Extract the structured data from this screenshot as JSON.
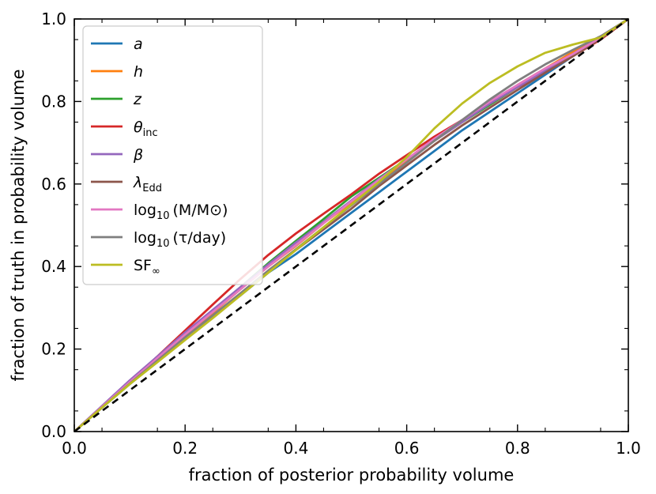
{
  "chart_data": {
    "type": "line",
    "xlabel": "fraction of posterior probability volume",
    "ylabel": "fraction of truth in probability volume",
    "xlim": [
      0.0,
      1.0
    ],
    "ylim": [
      0.0,
      1.0
    ],
    "x_ticks": [
      "0.0",
      "0.2",
      "0.4",
      "0.6",
      "0.8",
      "1.0"
    ],
    "y_ticks": [
      "0.0",
      "0.2",
      "0.4",
      "0.6",
      "0.8",
      "1.0"
    ],
    "grid": false,
    "legend_position": "upper-left",
    "reference_line": {
      "style": "dashed",
      "color": "#000000",
      "x": [
        0,
        1
      ],
      "y": [
        0,
        1
      ]
    },
    "x": [
      0.0,
      0.05,
      0.1,
      0.15,
      0.2,
      0.25,
      0.3,
      0.35,
      0.4,
      0.45,
      0.5,
      0.55,
      0.6,
      0.65,
      0.7,
      0.75,
      0.8,
      0.85,
      0.9,
      0.95,
      1.0
    ],
    "series": [
      {
        "name": "a",
        "base": "a",
        "sub": "",
        "italic": true,
        "color": "#1f77b4",
        "values": [
          0.0,
          0.058,
          0.115,
          0.17,
          0.225,
          0.28,
          0.33,
          0.385,
          0.43,
          0.48,
          0.53,
          0.58,
          0.63,
          0.68,
          0.73,
          0.775,
          0.82,
          0.865,
          0.91,
          0.955,
          1.0
        ]
      },
      {
        "name": "h",
        "base": "h",
        "sub": "",
        "italic": true,
        "color": "#ff7f0e",
        "values": [
          0.0,
          0.058,
          0.118,
          0.175,
          0.232,
          0.288,
          0.345,
          0.4,
          0.45,
          0.505,
          0.555,
          0.605,
          0.655,
          0.705,
          0.75,
          0.795,
          0.84,
          0.88,
          0.92,
          0.955,
          1.0
        ]
      },
      {
        "name": "z",
        "base": "z",
        "sub": "",
        "italic": true,
        "color": "#2ca02c",
        "values": [
          0.0,
          0.06,
          0.12,
          0.178,
          0.235,
          0.293,
          0.35,
          0.408,
          0.462,
          0.515,
          0.57,
          0.615,
          0.66,
          0.705,
          0.75,
          0.792,
          0.835,
          0.875,
          0.915,
          0.955,
          1.0
        ]
      },
      {
        "name": "θinc",
        "base": "θ",
        "sub": "inc",
        "italic": true,
        "color": "#d62728",
        "values": [
          0.0,
          0.06,
          0.12,
          0.182,
          0.245,
          0.308,
          0.37,
          0.428,
          0.48,
          0.528,
          0.575,
          0.625,
          0.67,
          0.715,
          0.755,
          0.795,
          0.835,
          0.87,
          0.91,
          0.95,
          1.0
        ]
      },
      {
        "name": "β",
        "base": "β",
        "sub": "",
        "italic": true,
        "color": "#9467bd",
        "values": [
          0.0,
          0.062,
          0.124,
          0.182,
          0.24,
          0.295,
          0.35,
          0.405,
          0.458,
          0.508,
          0.56,
          0.612,
          0.66,
          0.705,
          0.75,
          0.795,
          0.835,
          0.875,
          0.915,
          0.955,
          1.0
        ]
      },
      {
        "name": "λEdd",
        "base": "λ",
        "sub": "Edd",
        "italic": true,
        "color": "#8c564b",
        "values": [
          0.0,
          0.06,
          0.118,
          0.172,
          0.228,
          0.28,
          0.335,
          0.39,
          0.44,
          0.49,
          0.54,
          0.595,
          0.645,
          0.695,
          0.742,
          0.785,
          0.828,
          0.87,
          0.91,
          0.952,
          1.0
        ]
      },
      {
        "name": "log10(M/M☉)",
        "base": "log",
        "sub": "10",
        "tail": "(M/M⊙)",
        "italic": false,
        "color": "#e377c2",
        "values": [
          0.0,
          0.06,
          0.12,
          0.178,
          0.235,
          0.29,
          0.345,
          0.4,
          0.452,
          0.505,
          0.558,
          0.61,
          0.66,
          0.71,
          0.755,
          0.8,
          0.84,
          0.88,
          0.915,
          0.955,
          1.0
        ]
      },
      {
        "name": "log10(τ/day)",
        "base": "log",
        "sub": "10",
        "tail": "(τ/day)",
        "italic": false,
        "color": "#7f7f7f",
        "values": [
          0.0,
          0.058,
          0.116,
          0.172,
          0.228,
          0.282,
          0.335,
          0.39,
          0.442,
          0.495,
          0.548,
          0.6,
          0.652,
          0.705,
          0.755,
          0.805,
          0.85,
          0.89,
          0.925,
          0.958,
          1.0
        ]
      },
      {
        "name": "SF∞",
        "base": "SF",
        "sub": "∞",
        "italic": false,
        "color": "#bcbd22",
        "values": [
          0.0,
          0.058,
          0.115,
          0.168,
          0.222,
          0.275,
          0.33,
          0.385,
          0.44,
          0.495,
          0.55,
          0.605,
          0.665,
          0.735,
          0.795,
          0.845,
          0.885,
          0.918,
          0.938,
          0.955,
          1.0
        ]
      }
    ]
  }
}
